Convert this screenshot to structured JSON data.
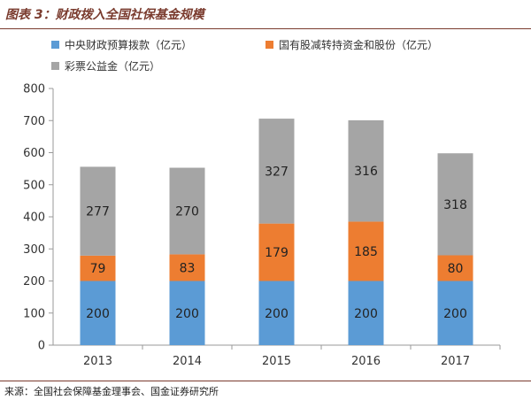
{
  "title": "图表 3：财政拨入全国社保基金规模",
  "source": "来源：全国社会保障基金理事会、国金证券研究所",
  "chart_data": {
    "type": "bar",
    "stacked": true,
    "categories": [
      "2013",
      "2014",
      "2015",
      "2016",
      "2017"
    ],
    "series": [
      {
        "name": "中央财政预算拨款（亿元）",
        "color": "#5b9bd5",
        "values": [
          200,
          200,
          200,
          200,
          200
        ]
      },
      {
        "name": "国有股减转持资金和股份（亿元）",
        "color": "#ed7d31",
        "values": [
          79,
          83,
          179,
          185,
          80
        ]
      },
      {
        "name": "彩票公益金（亿元）",
        "color": "#a5a5a5",
        "values": [
          277,
          270,
          327,
          316,
          318
        ]
      }
    ],
    "ylim": [
      0,
      800
    ],
    "yticks": [
      0,
      100,
      200,
      300,
      400,
      500,
      600,
      700,
      800
    ],
    "grid": false,
    "legend_position": "top"
  }
}
